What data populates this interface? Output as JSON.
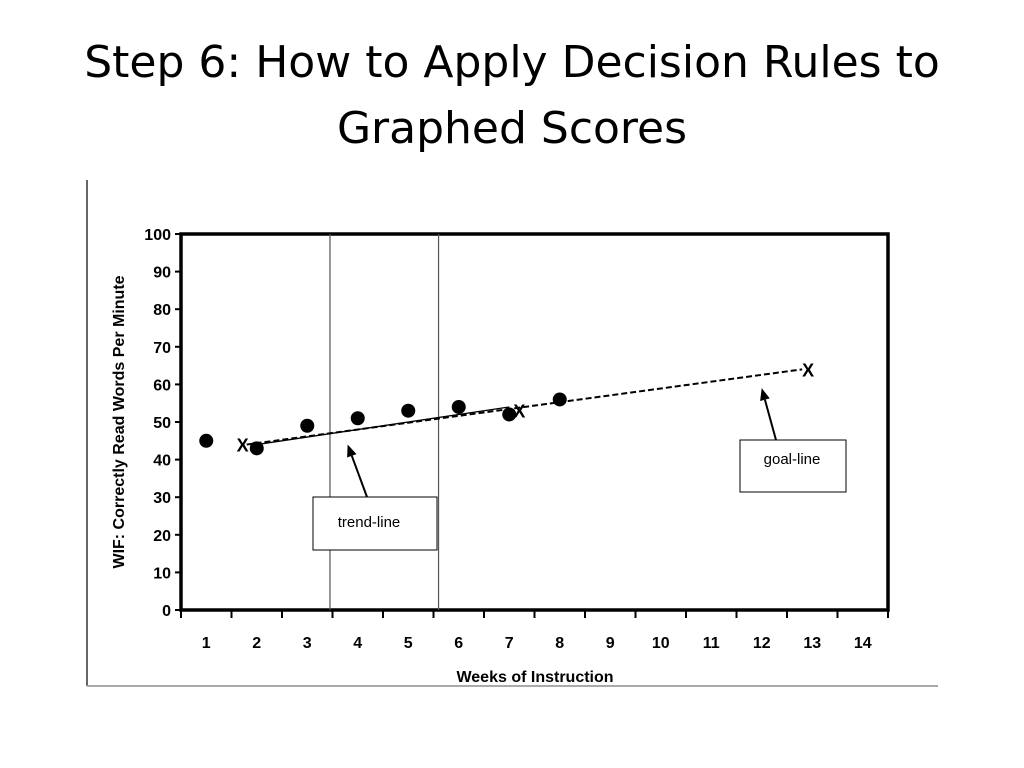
{
  "slide": {
    "title": "Step 6: How to Apply Decision Rules to Graphed Scores"
  },
  "chart_data": {
    "type": "scatter",
    "xlabel": "Weeks of Instruction",
    "ylabel": "WIF: Correctly Read Words Per Minute",
    "xlim": [
      0.5,
      14.5
    ],
    "ylim": [
      0,
      100
    ],
    "x_ticks": [
      "1",
      "2",
      "3",
      "4",
      "5",
      "6",
      "7",
      "8",
      "9",
      "10",
      "11",
      "12",
      "13",
      "14"
    ],
    "y_ticks": [
      "0",
      "10",
      "20",
      "30",
      "40",
      "50",
      "60",
      "70",
      "80",
      "90",
      "100"
    ],
    "series": [
      {
        "x": [
          1,
          2,
          3,
          4,
          5,
          6,
          7,
          8
        ],
        "y": [
          45,
          43,
          49,
          51,
          53,
          54,
          52,
          56
        ]
      }
    ],
    "goal_line": {
      "start": [
        1.8,
        44
      ],
      "end": [
        12.8,
        64
      ],
      "markers": [
        "X",
        "X"
      ],
      "style": "dashed"
    },
    "trend_line": {
      "start": [
        2,
        44
      ],
      "end": [
        7,
        54
      ],
      "style": "solid"
    },
    "secondary_marker": {
      "label": "X",
      "x": 7.2,
      "y": 53
    },
    "phase_lines": [
      3.45,
      5.6
    ],
    "annotations": [
      {
        "text": "trend-line",
        "target": [
          3.8,
          44
        ]
      },
      {
        "text": "goal-line",
        "target": [
          12.0,
          59
        ]
      }
    ],
    "grid": false,
    "legend": "none"
  }
}
